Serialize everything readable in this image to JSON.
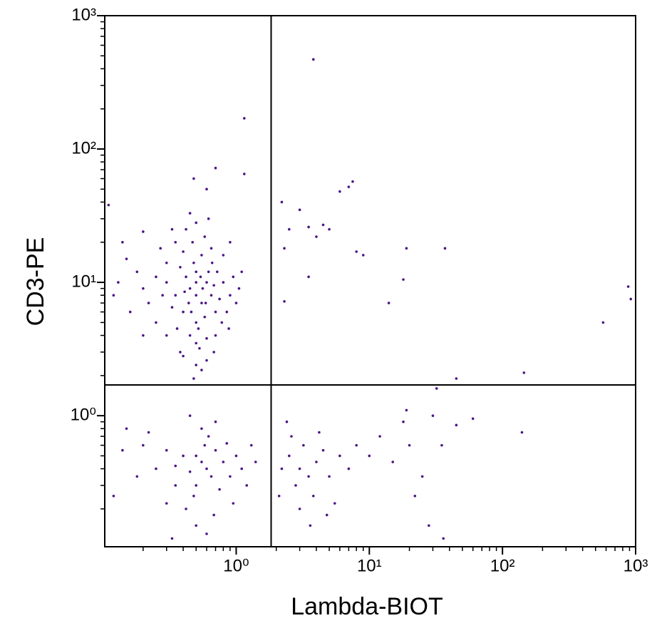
{
  "chart_data": {
    "type": "scatter",
    "x_label": "Lambda-BIOT",
    "y_label": "CD3-PE",
    "xscale": "log",
    "yscale": "log",
    "xlim": [
      0.103,
      1000
    ],
    "ylim": [
      0.104,
      1000
    ],
    "xticks": [
      {
        "value": 1,
        "label": "10⁰"
      },
      {
        "value": 10,
        "label": "10¹"
      },
      {
        "value": 100,
        "label": "10²"
      },
      {
        "value": 1000,
        "label": "10³"
      }
    ],
    "yticks": [
      {
        "value": 1,
        "label": "10⁰"
      },
      {
        "value": 10,
        "label": "10¹"
      },
      {
        "value": 100,
        "label": "10²"
      },
      {
        "value": 1000,
        "label": "10³"
      }
    ],
    "xminorticks": [
      0.2,
      0.3,
      0.4,
      0.5,
      0.6,
      0.7,
      0.8,
      0.9,
      2,
      3,
      4,
      5,
      6,
      7,
      8,
      9,
      20,
      30,
      40,
      50,
      60,
      70,
      80,
      90,
      200,
      300,
      400,
      500,
      600,
      700,
      800,
      900
    ],
    "yminorticks": [
      0.2,
      0.3,
      0.4,
      0.5,
      0.6,
      0.7,
      0.8,
      0.9,
      2,
      3,
      4,
      5,
      6,
      7,
      8,
      9,
      20,
      30,
      40,
      50,
      60,
      70,
      80,
      90,
      200,
      300,
      400,
      500,
      600,
      700,
      800,
      900
    ],
    "quadrant": {
      "x": 1.83,
      "y": 1.7
    },
    "color": "#4a1486",
    "x": [
      0.5,
      0.45,
      0.55,
      0.6,
      0.4,
      0.35,
      0.65,
      0.5,
      0.5,
      0.42,
      0.58,
      0.3,
      0.7,
      0.48,
      0.52,
      0.38,
      0.62,
      0.33,
      0.68,
      0.45,
      0.55,
      0.28,
      0.75,
      0.5,
      0.4,
      0.6,
      0.25,
      0.8,
      0.47,
      0.53,
      0.22,
      0.85,
      0.36,
      0.66,
      0.44,
      0.56,
      0.5,
      0.46,
      0.54,
      0.41,
      0.59,
      0.3,
      0.72,
      0.2,
      0.9,
      0.18,
      0.95,
      0.16,
      1.0,
      0.15,
      1.05,
      0.35,
      0.65,
      0.42,
      0.58,
      0.5,
      0.3,
      0.7,
      0.4,
      0.6,
      0.5,
      0.25,
      0.78,
      0.2,
      0.88,
      0.13,
      1.1,
      0.12,
      0.14,
      0.8,
      0.27,
      0.33,
      0.62,
      0.45,
      0.2,
      0.9,
      0.38,
      0.68,
      0.55,
      0.48,
      0.48,
      0.7,
      1.15,
      1.15,
      0.6,
      0.11,
      0.55,
      0.5,
      0.6,
      0.45,
      0.7,
      0.4,
      0.65,
      0.35,
      0.8,
      0.5,
      0.58,
      0.3,
      0.9,
      0.48,
      0.62,
      0.25,
      1.0,
      0.42,
      0.75,
      0.2,
      1.1,
      0.55,
      0.35,
      0.85,
      0.3,
      0.68,
      0.18,
      1.2,
      0.5,
      0.7,
      0.22,
      0.95,
      0.14,
      1.3,
      0.45,
      0.6,
      0.12,
      1.4,
      0.33,
      0.15,
      3,
      3.5,
      2.5,
      4,
      2.8,
      4.5,
      3.2,
      2.2,
      5,
      3.8,
      2.6,
      6,
      3,
      4.2,
      2.1,
      7,
      5.5,
      3.6,
      2.4,
      8,
      4.8,
      10,
      12,
      15,
      18,
      20,
      25,
      30,
      35,
      45,
      60,
      140,
      22,
      28,
      36,
      19,
      3.8,
      2.2,
      2.5,
      3,
      3.5,
      4,
      4.5,
      2.3,
      7,
      7.5,
      6,
      5,
      8,
      9,
      19,
      37,
      18,
      14,
      2.3,
      3.5,
      570,
      880,
      920,
      45,
      145,
      32
    ],
    "y": [
      8,
      9,
      7,
      10,
      6,
      8,
      8,
      12,
      5,
      11,
      5.5,
      10,
      6,
      14,
      4.5,
      13,
      12,
      6.5,
      9.5,
      4,
      16,
      8,
      7.5,
      3.5,
      17,
      3.8,
      11,
      10,
      20,
      3.2,
      7,
      6,
      4.5,
      14,
      7,
      9,
      10,
      6,
      11,
      8.5,
      7,
      14,
      12,
      9,
      8,
      12,
      11,
      6,
      7,
      15,
      9,
      20,
      18,
      25,
      22,
      28,
      4,
      4,
      2.8,
      2.6,
      2.4,
      5,
      5,
      4,
      4.5,
      10,
      12,
      8,
      20,
      16,
      18,
      25,
      30,
      33,
      24,
      20,
      3,
      3,
      2.2,
      1.9,
      60,
      72,
      65,
      170,
      50,
      38,
      0.45,
      0.5,
      0.4,
      0.38,
      0.55,
      0.5,
      0.35,
      0.42,
      0.45,
      0.3,
      0.6,
      0.55,
      0.35,
      0.25,
      0.7,
      0.4,
      0.5,
      0.2,
      0.28,
      0.6,
      0.4,
      0.8,
      0.3,
      0.62,
      0.22,
      0.18,
      0.35,
      0.3,
      0.15,
      0.9,
      0.75,
      0.22,
      0.55,
      0.6,
      1.0,
      0.13,
      0.25,
      0.45,
      0.12,
      0.8,
      0.4,
      0.35,
      0.5,
      0.45,
      0.3,
      0.55,
      0.6,
      0.4,
      0.35,
      0.25,
      0.7,
      0.5,
      0.2,
      0.75,
      0.25,
      0.4,
      0.22,
      0.15,
      0.9,
      0.6,
      0.18,
      0.5,
      0.7,
      0.45,
      0.9,
      0.6,
      0.35,
      1.0,
      0.6,
      0.85,
      0.95,
      0.75,
      0.25,
      0.15,
      0.12,
      1.1,
      470,
      40,
      25,
      35,
      26,
      22,
      27,
      18,
      52,
      57,
      48,
      25,
      17,
      16,
      18,
      18,
      10.5,
      7,
      7.2,
      11,
      5,
      9.3,
      7.5,
      1.9,
      2.1,
      1.6
    ]
  }
}
